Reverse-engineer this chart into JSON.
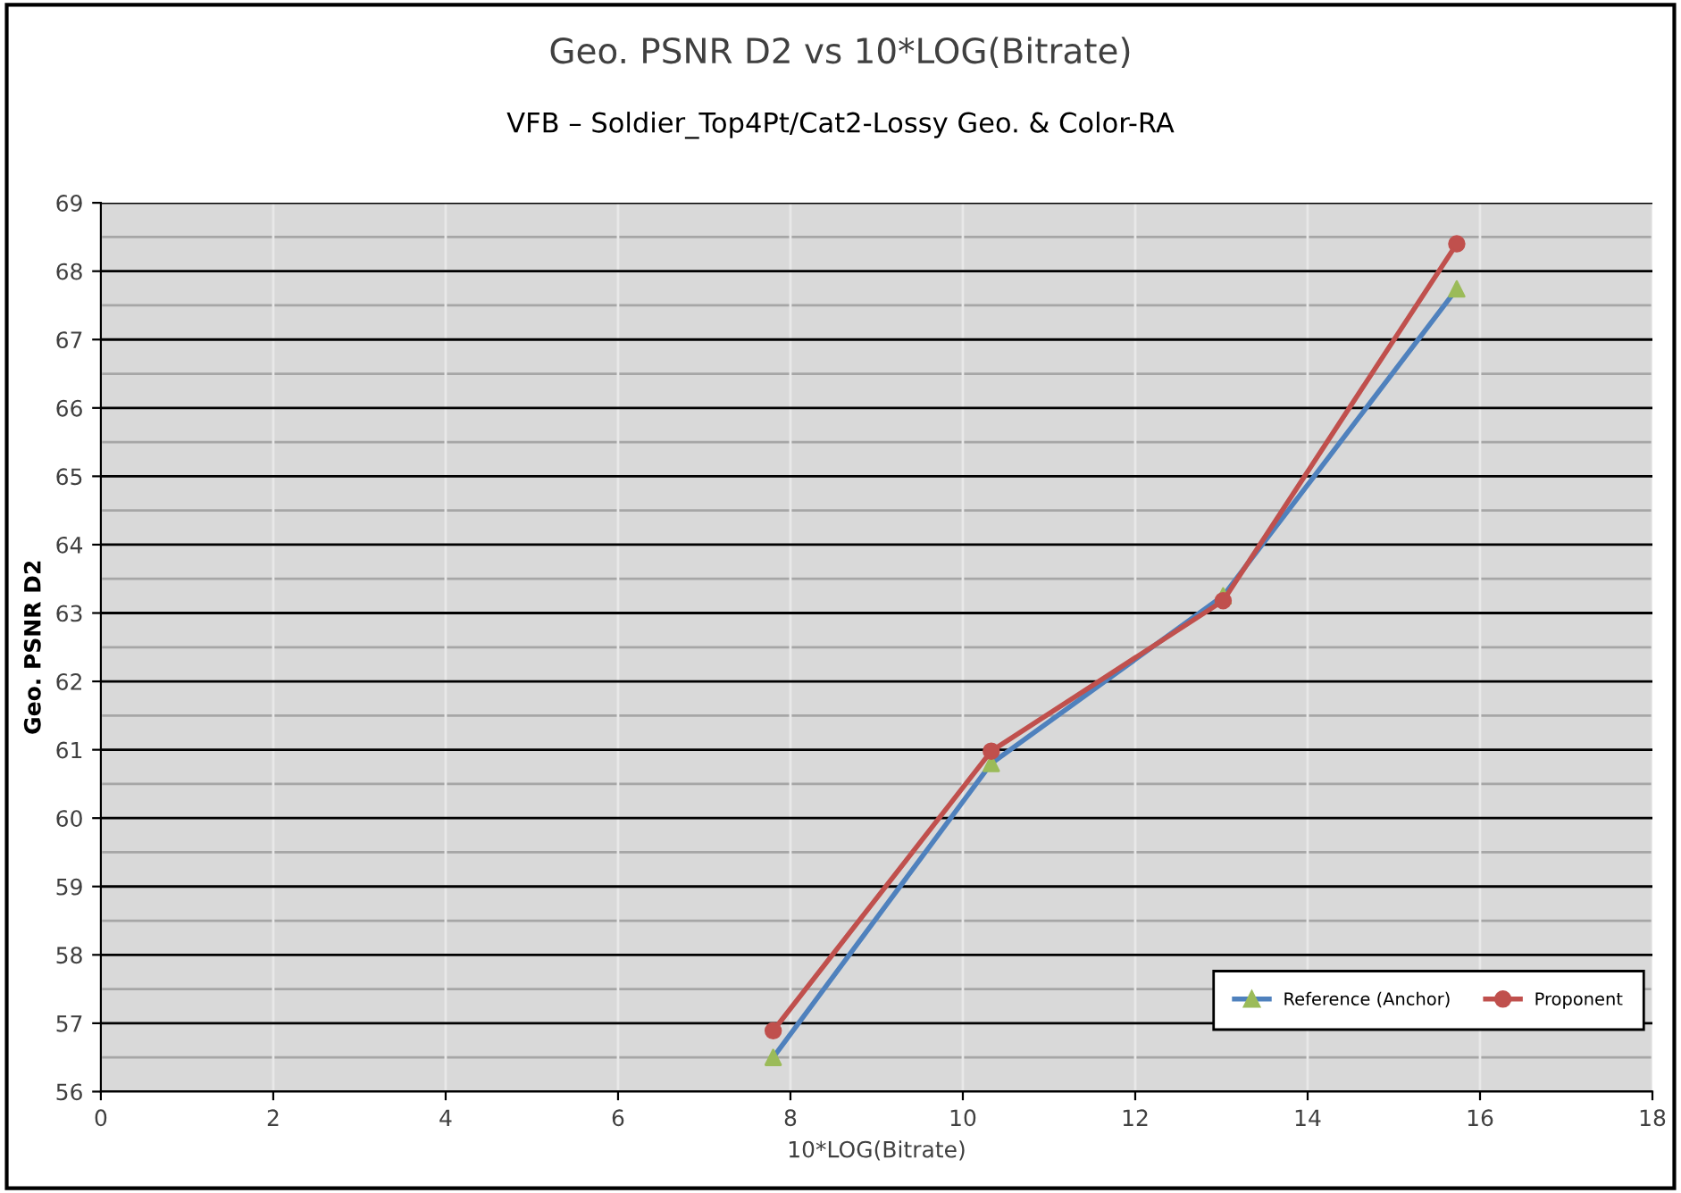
{
  "chart_data": {
    "type": "line",
    "title": "Geo. PSNR D2 vs 10*LOG(Bitrate)",
    "subtitle": "VFB – Soldier_Top4Pt/Cat2-Lossy Geo. & Color-RA",
    "xlabel": "10*LOG(Bitrate)",
    "ylabel": "Geo. PSNR D2",
    "series": [
      {
        "name": "Reference (Anchor)",
        "color": "#4f81bd",
        "colors": [
          "#9bbb59",
          "#9bbb59",
          "#9bbb59",
          "#9bbb59"
        ],
        "marker": "triangle",
        "x": [
          7.8,
          10.33,
          13.02,
          15.73
        ],
        "values": [
          56.5,
          60.8,
          63.25,
          67.74
        ]
      },
      {
        "name": "Proponent",
        "color": "#c0504d",
        "marker": "circle",
        "x": [
          7.8,
          10.33,
          13.02,
          15.73
        ],
        "values": [
          56.89,
          60.98,
          63.18,
          68.4
        ]
      }
    ],
    "xlim": [
      0,
      18
    ],
    "xticks": [
      0,
      2,
      4,
      6,
      8,
      10,
      12,
      14,
      16,
      18
    ],
    "ylim": [
      56,
      69
    ],
    "yticks": [
      56,
      57,
      58,
      59,
      60,
      61,
      62,
      63,
      64,
      65,
      66,
      67,
      68,
      69
    ],
    "grid": true,
    "legend": "bottom right",
    "line_style": "solid"
  }
}
